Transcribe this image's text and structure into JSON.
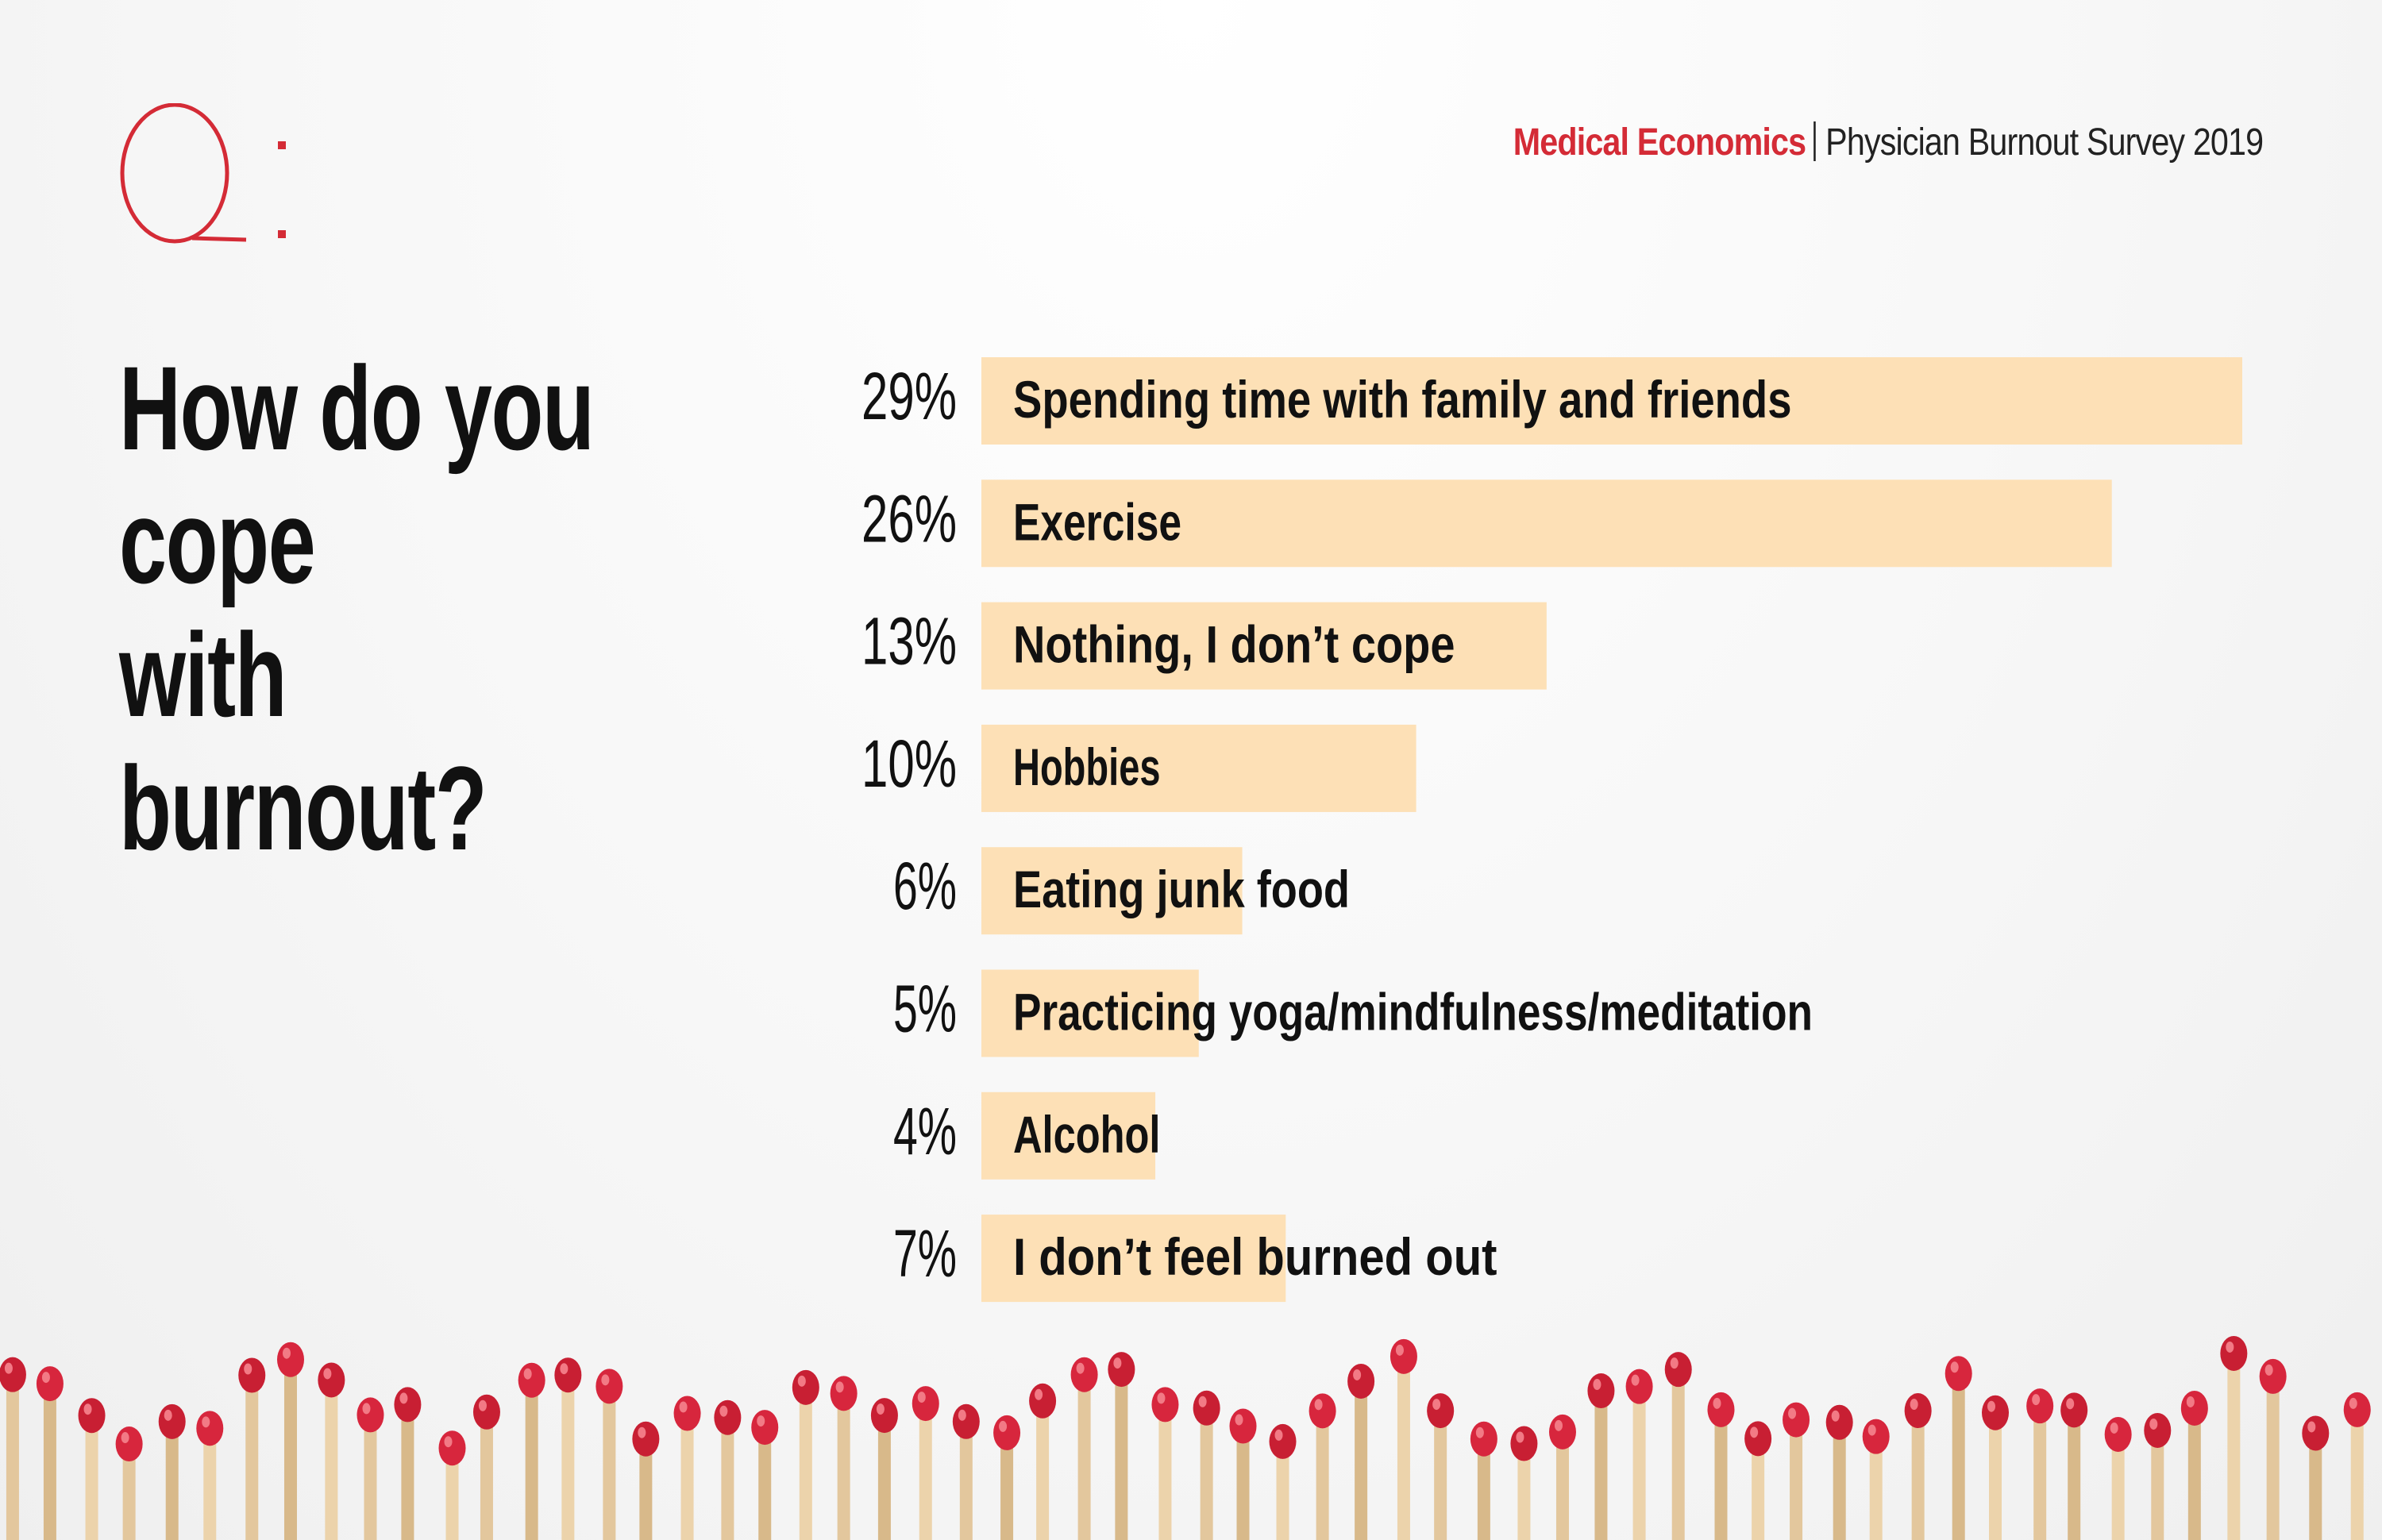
{
  "header": {
    "q_letter": "Q",
    "brand_name": "Medical Economics",
    "survey_title": "Physician Burnout Survey 2019"
  },
  "question": "How do you cope with burnout?",
  "colors": {
    "accent": "#d42b36",
    "bar": "#fde0b6",
    "text": "#111111"
  },
  "chart_data": {
    "type": "bar",
    "orientation": "horizontal",
    "categories": [
      "Spending time with family and friends",
      "Exercise",
      "Nothing, I don’t cope",
      "Hobbies",
      "Eating junk food",
      "Practicing yoga/mindfulness/meditation",
      "Alcohol",
      "I don’t feel burned out"
    ],
    "values": [
      29,
      26,
      13,
      10,
      6,
      5,
      4,
      7
    ],
    "value_labels": [
      "29%",
      "26%",
      "13%",
      "10%",
      "6%",
      "5%",
      "4%",
      "7%"
    ],
    "unit": "%",
    "title": "How do you cope with burnout?",
    "xlabel": "",
    "ylabel": "",
    "grid": false
  }
}
